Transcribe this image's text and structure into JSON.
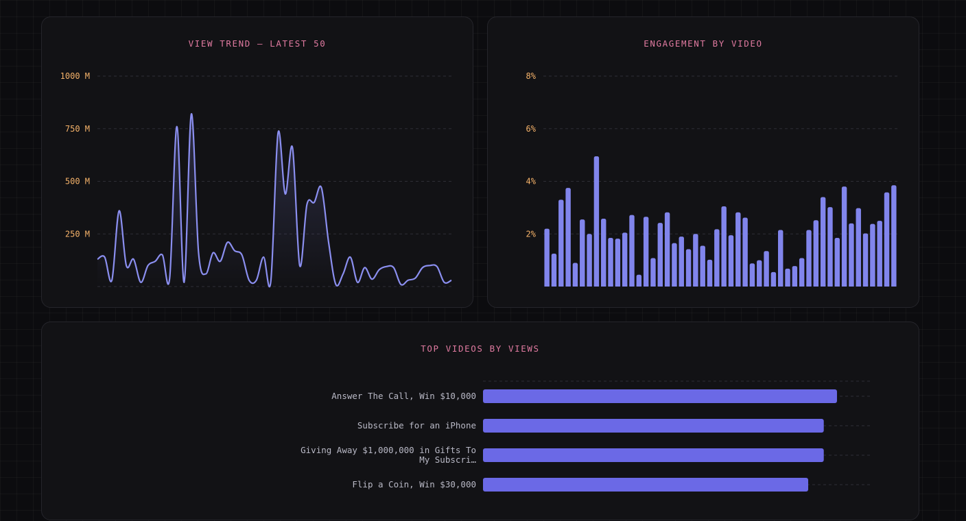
{
  "chart_data": [
    {
      "type": "line",
      "title": "VIEW TREND — LATEST 50",
      "ylim": [
        0,
        1000
      ],
      "y_ticks": [
        "1000 M",
        "750 M",
        "500 M",
        "250 M"
      ],
      "y_tick_values": [
        1000,
        750,
        500,
        250
      ],
      "x": [
        1,
        2,
        3,
        4,
        5,
        6,
        7,
        8,
        9,
        10,
        11,
        12,
        13,
        14,
        15,
        16,
        17,
        18,
        19,
        20,
        21,
        22,
        23,
        24,
        25,
        26,
        27,
        28,
        29,
        30,
        31,
        32,
        33,
        34,
        35,
        36,
        37,
        38,
        39,
        40,
        41,
        42,
        43,
        44,
        45,
        46,
        47,
        48,
        49,
        50
      ],
      "values": [
        130,
        140,
        30,
        360,
        100,
        130,
        20,
        100,
        120,
        150,
        40,
        760,
        20,
        820,
        160,
        60,
        160,
        120,
        210,
        170,
        150,
        30,
        30,
        140,
        25,
        730,
        440,
        660,
        100,
        390,
        400,
        470,
        210,
        10,
        60,
        140,
        20,
        90,
        35,
        80,
        95,
        90,
        10,
        30,
        40,
        90,
        100,
        95,
        20,
        30
      ],
      "grid": true,
      "line_color": "#8b8ff0"
    },
    {
      "type": "bar",
      "title": "ENGAGEMENT BY VIDEO",
      "ylim": [
        0,
        8
      ],
      "y_ticks": [
        "8%",
        "6%",
        "4%",
        "2%"
      ],
      "y_tick_values": [
        8,
        6,
        4,
        2
      ],
      "values": [
        2.2,
        1.25,
        3.3,
        3.75,
        0.9,
        2.55,
        2.0,
        4.95,
        2.58,
        1.85,
        1.82,
        2.05,
        2.72,
        0.45,
        2.65,
        1.08,
        2.42,
        2.82,
        1.65,
        1.9,
        1.42,
        2.0,
        1.55,
        1.02,
        2.18,
        3.05,
        1.95,
        2.82,
        2.62,
        0.88,
        1.0,
        1.35,
        0.55,
        2.15,
        0.68,
        0.78,
        1.08,
        2.15,
        2.52,
        3.4,
        3.02,
        1.85,
        3.8,
        2.4,
        2.98,
        2.02,
        2.38,
        2.5,
        3.58,
        3.85
      ],
      "grid": true,
      "bar_color": "#8185ec"
    },
    {
      "type": "bar",
      "orientation": "horizontal",
      "title": "TOP VIDEOS BY VIEWS",
      "categories": [
        "Answer The Call, Win $10,000",
        "Subscribe for an iPhone",
        "Giving Away $1,000,000 in Gifts To My Subscri…",
        "Flip a Coin, Win $30,000"
      ],
      "category_lines": [
        [
          "Answer The Call, Win $10,000"
        ],
        [
          "Subscribe for an iPhone"
        ],
        [
          "Giving Away $1,000,000 in Gifts To",
          "My Subscri…"
        ],
        [
          "Flip a Coin, Win $30,000"
        ]
      ],
      "values": [
        0.91,
        0.876,
        0.876,
        0.836
      ],
      "value_scale": "fraction of axis range",
      "grid": true,
      "bar_color": "#6b69e6"
    }
  ]
}
